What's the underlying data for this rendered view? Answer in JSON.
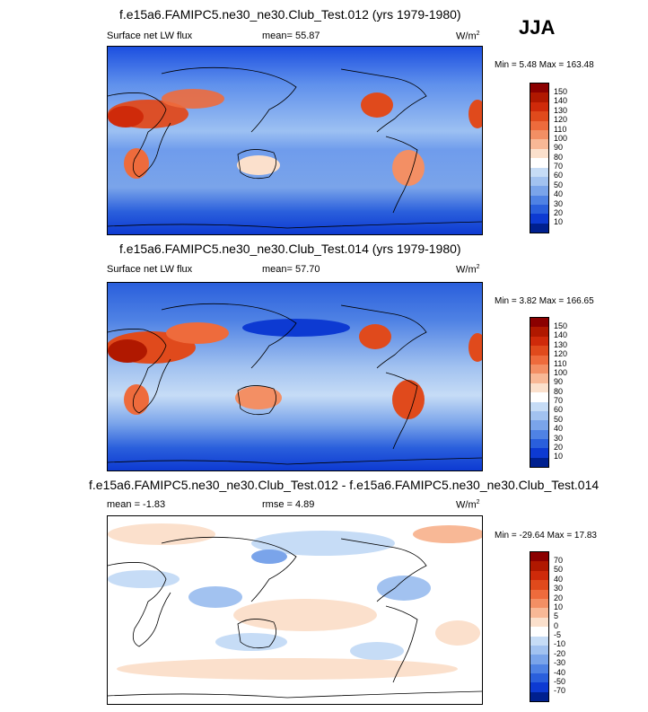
{
  "season": "JJA",
  "panels": [
    {
      "title": "f.e15a6.FAMIPC5.ne30_ne30.Club_Test.012 (yrs 1979-1980)",
      "left_label": "Surface net LW flux",
      "center_label": "mean=  55.87",
      "units": "W/m",
      "units_sup": "2",
      "minmax": "Min =   5.48 Max = 163.48"
    },
    {
      "title": "f.e15a6.FAMIPC5.ne30_ne30.Club_Test.014 (yrs 1979-1980)",
      "left_label": "Surface net LW flux",
      "center_label": "mean=  57.70",
      "units": "W/m",
      "units_sup": "2",
      "minmax": "Min =   3.82 Max = 166.65"
    },
    {
      "title": "f.e15a6.FAMIPC5.ne30_ne30.Club_Test.012 - f.e15a6.FAMIPC5.ne30_ne30.Club_Test.014",
      "left_label": "mean =  -1.83",
      "center_label": "rmse =   4.89",
      "units": "W/m",
      "units_sup": "2",
      "minmax": "Min = -29.64 Max =  17.83"
    }
  ],
  "colorbar_abs": {
    "labels": [
      "150",
      "140",
      "130",
      "120",
      "110",
      "100",
      "90",
      "80",
      "70",
      "60",
      "50",
      "40",
      "30",
      "20",
      "10"
    ],
    "colors": [
      "#8b0000",
      "#b01800",
      "#cf2a0a",
      "#e04a1c",
      "#ee6b3c",
      "#f38f64",
      "#f8b896",
      "#fbe0cc",
      "#ffffff",
      "#c6dcf6",
      "#a2c2f0",
      "#7aa4ea",
      "#4f82e4",
      "#2a5fdc",
      "#0d3ad2",
      "#00208f"
    ]
  },
  "colorbar_diff": {
    "labels": [
      "70",
      "50",
      "40",
      "30",
      "20",
      "10",
      "5",
      "0",
      "-5",
      "-10",
      "-20",
      "-30",
      "-40",
      "-50",
      "-70"
    ],
    "colors": [
      "#8b0000",
      "#b01800",
      "#cf2a0a",
      "#e04a1c",
      "#ee6b3c",
      "#f38f64",
      "#f8b896",
      "#fbe0cc",
      "#ffffff",
      "#c6dcf6",
      "#a2c2f0",
      "#7aa4ea",
      "#4f82e4",
      "#2a5fdc",
      "#0d3ad2",
      "#00208f"
    ]
  }
}
